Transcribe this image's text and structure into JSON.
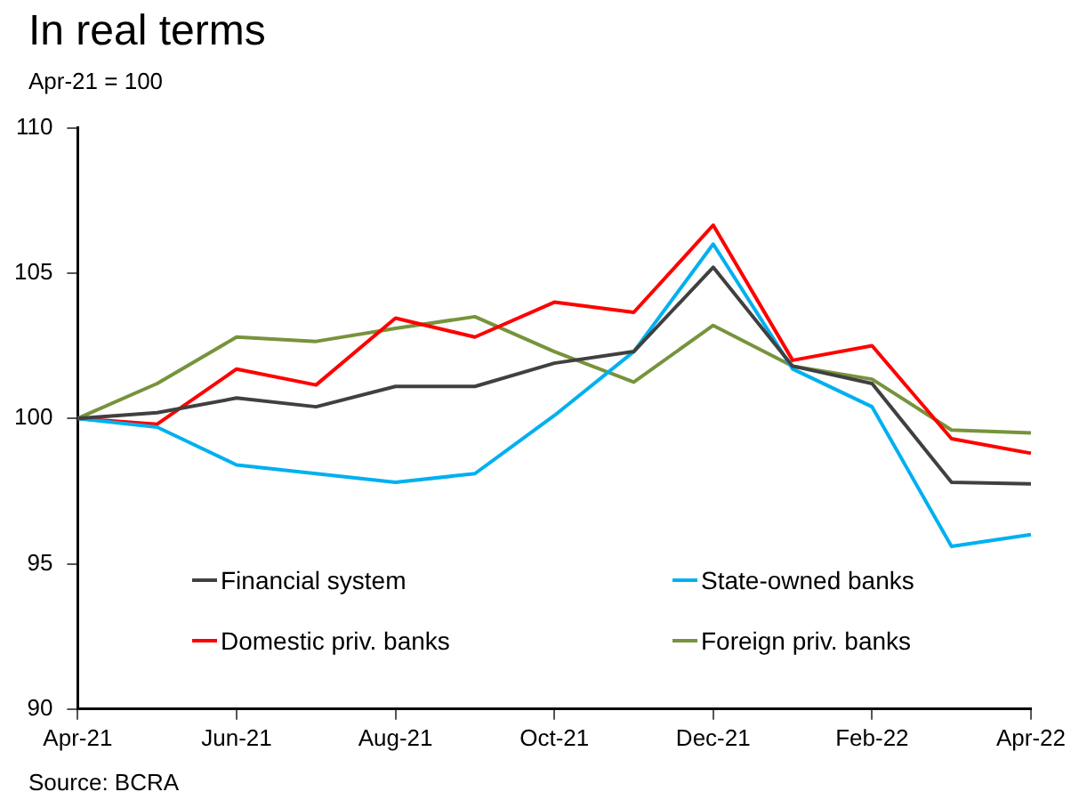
{
  "chart_data": {
    "type": "line",
    "title": "In real terms",
    "subtitle": "Apr-21 = 100",
    "categories": [
      "Apr-21",
      null,
      "Jun-21",
      null,
      "Aug-21",
      null,
      "Oct-21",
      null,
      "Dec-21",
      null,
      "Feb-22",
      null,
      "Apr-22"
    ],
    "series": [
      {
        "name": "Financial system",
        "color": "#404040",
        "values": [
          100,
          100.2,
          100.7,
          100.4,
          101.1,
          101.1,
          101.9,
          102.3,
          105.2,
          101.8,
          101.2,
          97.8,
          97.75
        ]
      },
      {
        "name": "State-owned banks",
        "color": "#00b0f0",
        "values": [
          100,
          99.7,
          98.4,
          98.1,
          97.8,
          98.1,
          100.1,
          102.3,
          106.0,
          101.7,
          100.4,
          95.6,
          96.0
        ]
      },
      {
        "name": "Domestic priv. banks",
        "color": "#ff0000",
        "values": [
          100,
          99.8,
          101.7,
          101.15,
          103.45,
          102.8,
          104.0,
          103.65,
          106.65,
          102.0,
          102.5,
          99.3,
          98.8
        ]
      },
      {
        "name": "Foreign priv. banks",
        "color": "#77933c",
        "values": [
          100,
          101.2,
          102.8,
          102.65,
          103.1,
          103.5,
          102.3,
          101.25,
          103.2,
          101.8,
          101.35,
          99.6,
          99.5
        ]
      }
    ],
    "ylim": [
      90,
      110
    ],
    "yticks": [
      90,
      95,
      100,
      105,
      110
    ],
    "grid": false,
    "legend": "bottom",
    "marker": "none",
    "line_style": "solid",
    "annotations": [
      "Source: BCRA"
    ]
  }
}
